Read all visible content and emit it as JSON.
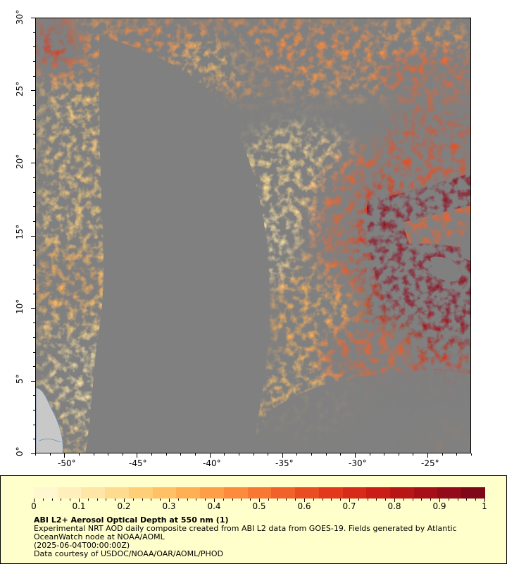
{
  "map": {
    "y_ticks": [
      "0°",
      "5°",
      "10°",
      "15°",
      "20°",
      "25°",
      "30°"
    ],
    "x_ticks": [
      "-50°",
      "-45°",
      "-40°",
      "-35°",
      "-30°",
      "-25°"
    ],
    "lat_range": [
      0,
      30
    ],
    "lon_range": [
      -52,
      -22
    ],
    "background_color": "#808080",
    "land_color": "#c8c8c8"
  },
  "legend": {
    "colorbar_ticks": [
      "0",
      "0.1",
      "0.2",
      "0.3",
      "0.4",
      "0.5",
      "0.6",
      "0.7",
      "0.8",
      "0.9",
      "1"
    ],
    "colorbar_range": [
      0,
      1
    ],
    "colors": [
      "#fff7cf",
      "#ffefbd",
      "#ffe6a6",
      "#ffdb8f",
      "#ffcf78",
      "#ffc066",
      "#ffb055",
      "#ff9e48",
      "#fc8b3e",
      "#f77733",
      "#f1612a",
      "#ea4d22",
      "#e2391c",
      "#d72a18",
      "#c91d16",
      "#b81516",
      "#a70f18",
      "#930a1a",
      "#80061a"
    ],
    "title": "ABI L2+ Aerosol Optical Depth at 550 nm (1)",
    "line1": "Experimental NRT AOD daily composite created from ABI L2 data from GOES-19. Fields generated by Atlantic OceanWatch node at NOAA/AOML",
    "line2": "(2025-06-04T00:00:00Z)",
    "line3": "Data courtesy of USDOC/NOAA/OAR/AOML/PHOD"
  }
}
